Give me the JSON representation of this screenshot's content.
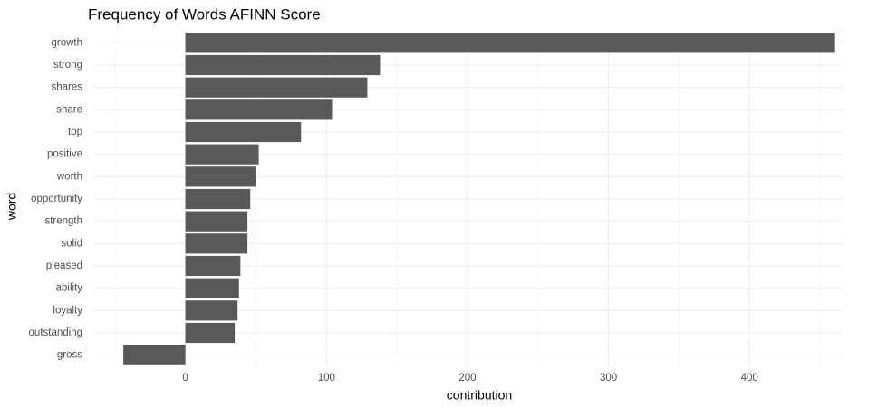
{
  "chart_data": {
    "type": "barh",
    "title": "Frequency of Words AFINN Score",
    "x_label": "contribution",
    "y_label": "word",
    "categories": [
      "growth",
      "strong",
      "shares",
      "share",
      "top",
      "positive",
      "worth",
      "opportunity",
      "strength",
      "solid",
      "pleased",
      "ability",
      "loyalty",
      "outstanding",
      "gross"
    ],
    "values": [
      460,
      138,
      129,
      104,
      82,
      52,
      50,
      46,
      44,
      44,
      39,
      38,
      37,
      35,
      -44
    ],
    "color": "#595959",
    "xlim": [
      -64,
      466
    ],
    "xticks": [
      0,
      100,
      200,
      300,
      400
    ],
    "xticks_minor": [
      -50,
      50,
      150,
      250,
      350,
      450
    ],
    "grid": true
  }
}
